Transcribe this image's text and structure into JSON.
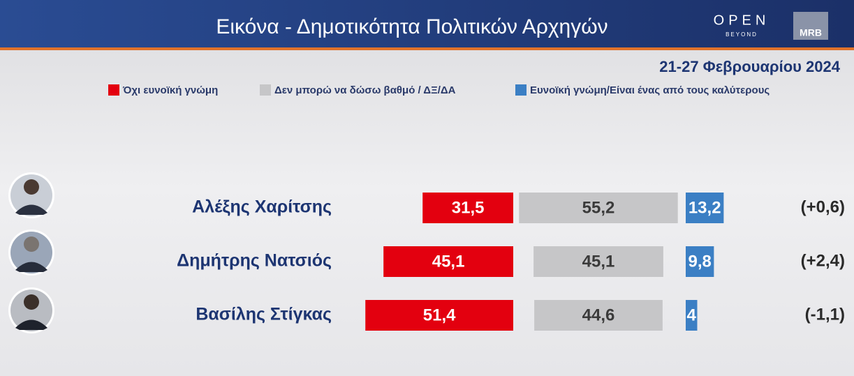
{
  "header": {
    "title": "Εικόνα - Δημοτικότητα Πολιτικών Αρχηγών",
    "logo_open": "OPEN",
    "logo_beyond": "BEYOND",
    "logo_mrb": "MRB"
  },
  "chart_data": {
    "type": "bar",
    "subtitle": "21-27 Φεβρουαρίου 2024",
    "categories": [
      "Αλέξης Χαρίτσης",
      "Δημήτρης Νατσιός",
      "Βασίλης Στίγκας"
    ],
    "series": [
      {
        "name": "Όχι ευνοϊκή γνώμη",
        "color": "#e3000f",
        "values": [
          31.5,
          45.1,
          51.4
        ],
        "value_labels": [
          "31,5",
          "45,1",
          "51,4"
        ]
      },
      {
        "name": "Δεν μπορώ να δώσω βαθμό / ΔΞ/ΔΑ",
        "color": "#c6c6c8",
        "values": [
          55.2,
          45.1,
          44.6
        ],
        "value_labels": [
          "55,2",
          "45,1",
          "44,6"
        ]
      },
      {
        "name": "Ευνοϊκή γνώμη/Είναι ένας από τους καλύτερους",
        "color": "#3b7fc4",
        "values": [
          13.2,
          9.8,
          4
        ],
        "value_labels": [
          "13,2",
          "9,8",
          "4"
        ]
      }
    ],
    "changes": [
      "(+0,6)",
      "(+2,4)",
      "(-1,1)"
    ]
  }
}
